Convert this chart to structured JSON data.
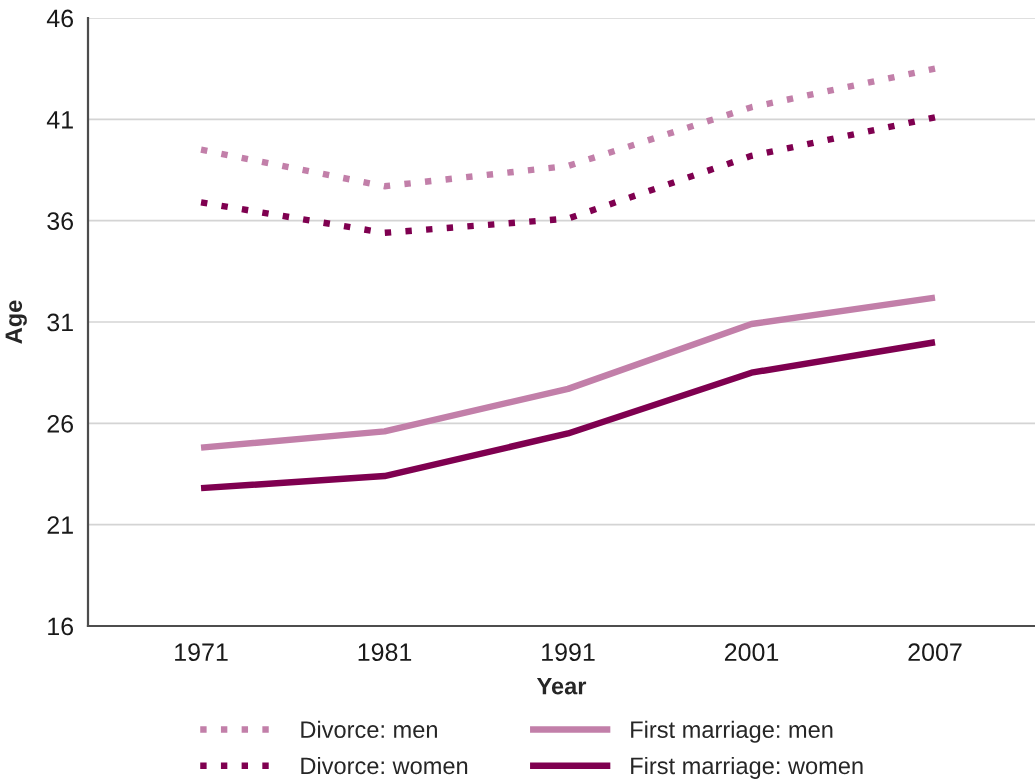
{
  "chart_data": {
    "type": "line",
    "xlabel": "Year",
    "ylabel": "Age",
    "categories": [
      "1971",
      "1981",
      "1991",
      "2001",
      "2007"
    ],
    "ylim": [
      16,
      46
    ],
    "yticks": [
      16,
      21,
      26,
      31,
      36,
      41,
      46
    ],
    "grid": "y",
    "legend": "bottom",
    "series": [
      {
        "name": "Divorce: men",
        "color": "#c27fa9",
        "line_style": "dotted",
        "values": [
          39.5,
          37.7,
          38.7,
          41.6,
          43.5
        ]
      },
      {
        "name": "Divorce: women",
        "color": "#7f0050",
        "line_style": "dotted",
        "values": [
          36.9,
          35.4,
          36.1,
          39.2,
          41.1
        ]
      },
      {
        "name": "First marriage: men",
        "color": "#c27fa9",
        "line_style": "solid",
        "values": [
          24.8,
          25.6,
          27.7,
          30.9,
          32.2
        ]
      },
      {
        "name": "First marriage: women",
        "color": "#7f0050",
        "line_style": "solid",
        "values": [
          22.8,
          23.4,
          25.5,
          28.5,
          30.0
        ]
      }
    ]
  }
}
